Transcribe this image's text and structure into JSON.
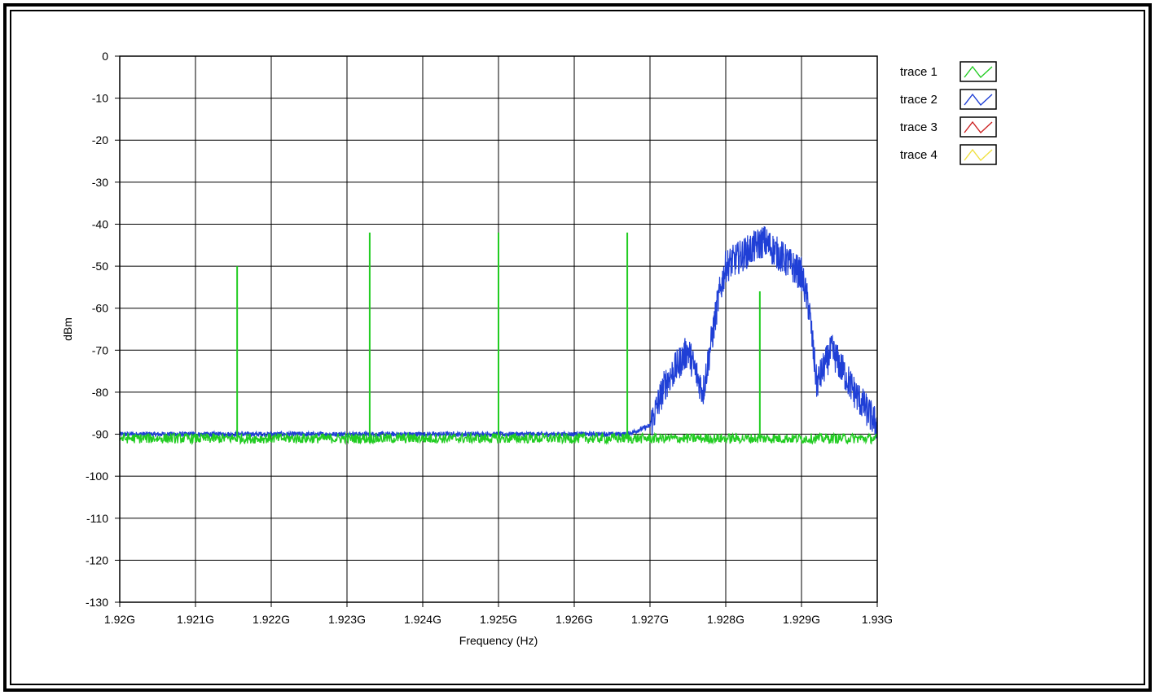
{
  "chart_data": {
    "type": "line",
    "xlabel": "Frequency (Hz)",
    "ylabel": "dBm",
    "xlim": [
      1920000000.0,
      1930000000.0
    ],
    "ylim": [
      -130,
      0
    ],
    "x_ticks": [
      {
        "value": 1920000000.0,
        "label": "1.92G"
      },
      {
        "value": 1921000000.0,
        "label": "1.921G"
      },
      {
        "value": 1922000000.0,
        "label": "1.922G"
      },
      {
        "value": 1923000000.0,
        "label": "1.923G"
      },
      {
        "value": 1924000000.0,
        "label": "1.924G"
      },
      {
        "value": 1925000000.0,
        "label": "1.925G"
      },
      {
        "value": 1926000000.0,
        "label": "1.926G"
      },
      {
        "value": 1927000000.0,
        "label": "1.927G"
      },
      {
        "value": 1928000000.0,
        "label": "1.928G"
      },
      {
        "value": 1929000000.0,
        "label": "1.929G"
      },
      {
        "value": 1930000000.0,
        "label": "1.93G"
      }
    ],
    "y_ticks": [
      {
        "value": 0,
        "label": "0"
      },
      {
        "value": -10,
        "label": "-10"
      },
      {
        "value": -20,
        "label": "-20"
      },
      {
        "value": -30,
        "label": "-30"
      },
      {
        "value": -40,
        "label": "-40"
      },
      {
        "value": -50,
        "label": "-50"
      },
      {
        "value": -60,
        "label": "-60"
      },
      {
        "value": -70,
        "label": "-70"
      },
      {
        "value": -80,
        "label": "-80"
      },
      {
        "value": -90,
        "label": "-90"
      },
      {
        "value": -100,
        "label": "-100"
      },
      {
        "value": -110,
        "label": "-110"
      },
      {
        "value": -120,
        "label": "-120"
      },
      {
        "value": -130,
        "label": "-130"
      }
    ],
    "grid": true,
    "legend_position": "right",
    "series": [
      {
        "name": "trace 1",
        "color": "#22cc22",
        "noise_floor_dbm": -91,
        "points": [
          [
            1920000000.0,
            -91
          ],
          [
            1921500000.0,
            -91
          ],
          [
            1921550000.0,
            -50
          ],
          [
            1921600000.0,
            -91
          ],
          [
            1923250000.0,
            -91
          ],
          [
            1923300000.0,
            -42
          ],
          [
            1923350000.0,
            -91
          ],
          [
            1924950000.0,
            -91
          ],
          [
            1925000000.0,
            -42
          ],
          [
            1925050000.0,
            -91
          ],
          [
            1926650000.0,
            -91
          ],
          [
            1926700000.0,
            -42
          ],
          [
            1926750000.0,
            -91
          ],
          [
            1928400000.0,
            -91
          ],
          [
            1928450000.0,
            -56
          ],
          [
            1928500000.0,
            -91
          ],
          [
            1930000000.0,
            -90
          ]
        ]
      },
      {
        "name": "trace 2",
        "color": "#1f3fd6",
        "noise_floor_dbm": -90,
        "points": [
          [
            1920000000.0,
            -90
          ],
          [
            1926700000.0,
            -90
          ],
          [
            1927000000.0,
            -88
          ],
          [
            1927200000.0,
            -78
          ],
          [
            1927500000.0,
            -70
          ],
          [
            1927700000.0,
            -80
          ],
          [
            1927900000.0,
            -58
          ],
          [
            1928000000.0,
            -50
          ],
          [
            1928500000.0,
            -44
          ],
          [
            1929000000.0,
            -52
          ],
          [
            1929100000.0,
            -60
          ],
          [
            1929200000.0,
            -78
          ],
          [
            1929400000.0,
            -70
          ],
          [
            1929700000.0,
            -80
          ],
          [
            1930000000.0,
            -88
          ]
        ]
      },
      {
        "name": "trace 3",
        "color": "#cc2222",
        "points": []
      },
      {
        "name": "trace 4",
        "color": "#f0e040",
        "points": []
      }
    ]
  }
}
